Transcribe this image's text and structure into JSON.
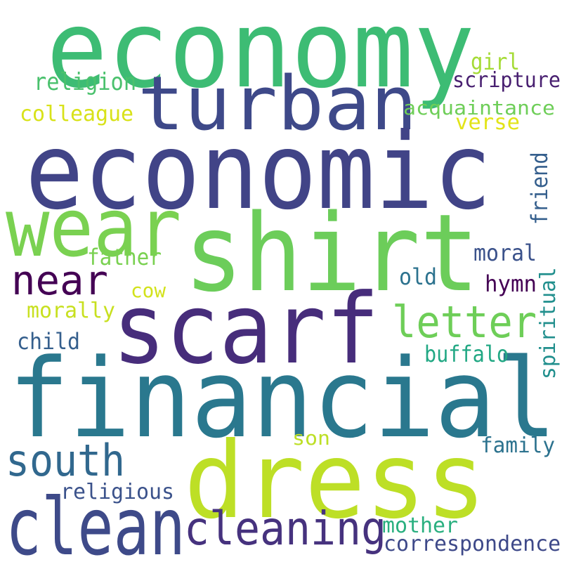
{
  "words": [
    {
      "text": "economy",
      "color": "#3dbc74"
    },
    {
      "text": "turban",
      "color": "#3e4989"
    },
    {
      "text": "economic",
      "color": "#414487"
    },
    {
      "text": "wear",
      "color": "#7ad151"
    },
    {
      "text": "shirt",
      "color": "#6ccd5a"
    },
    {
      "text": "scarf",
      "color": "#472d7b"
    },
    {
      "text": "financial",
      "color": "#2a788e"
    },
    {
      "text": "dress",
      "color": "#bddf26"
    },
    {
      "text": "clean",
      "color": "#3e4a89"
    },
    {
      "text": "cleaning",
      "color": "#46327e"
    },
    {
      "text": "south",
      "color": "#31688e"
    },
    {
      "text": "near",
      "color": "#440154"
    },
    {
      "text": "letter",
      "color": "#6ece58"
    },
    {
      "text": "religion",
      "color": "#4ac16d"
    },
    {
      "text": "colleague",
      "color": "#d8e219"
    },
    {
      "text": "girl",
      "color": "#a5db36"
    },
    {
      "text": "scripture",
      "color": "#481f70"
    },
    {
      "text": "acquaintance",
      "color": "#6ece58"
    },
    {
      "text": "verse",
      "color": "#e2e418"
    },
    {
      "text": "friend",
      "color": "#355f8d"
    },
    {
      "text": "father",
      "color": "#7ad151"
    },
    {
      "text": "moral",
      "color": "#3b528b"
    },
    {
      "text": "old",
      "color": "#2c728e"
    },
    {
      "text": "hymn",
      "color": "#440154"
    },
    {
      "text": "cow",
      "color": "#d2e21b"
    },
    {
      "text": "morally",
      "color": "#c8e020"
    },
    {
      "text": "spiritual",
      "color": "#218f8d"
    },
    {
      "text": "child",
      "color": "#355f8d"
    },
    {
      "text": "buffalo",
      "color": "#22a884"
    },
    {
      "text": "son",
      "color": "#bddf26"
    },
    {
      "text": "family",
      "color": "#2c728e"
    },
    {
      "text": "religious",
      "color": "#3b528b"
    },
    {
      "text": "mother",
      "color": "#29af7f"
    },
    {
      "text": "correspondence",
      "color": "#3e4989"
    }
  ]
}
